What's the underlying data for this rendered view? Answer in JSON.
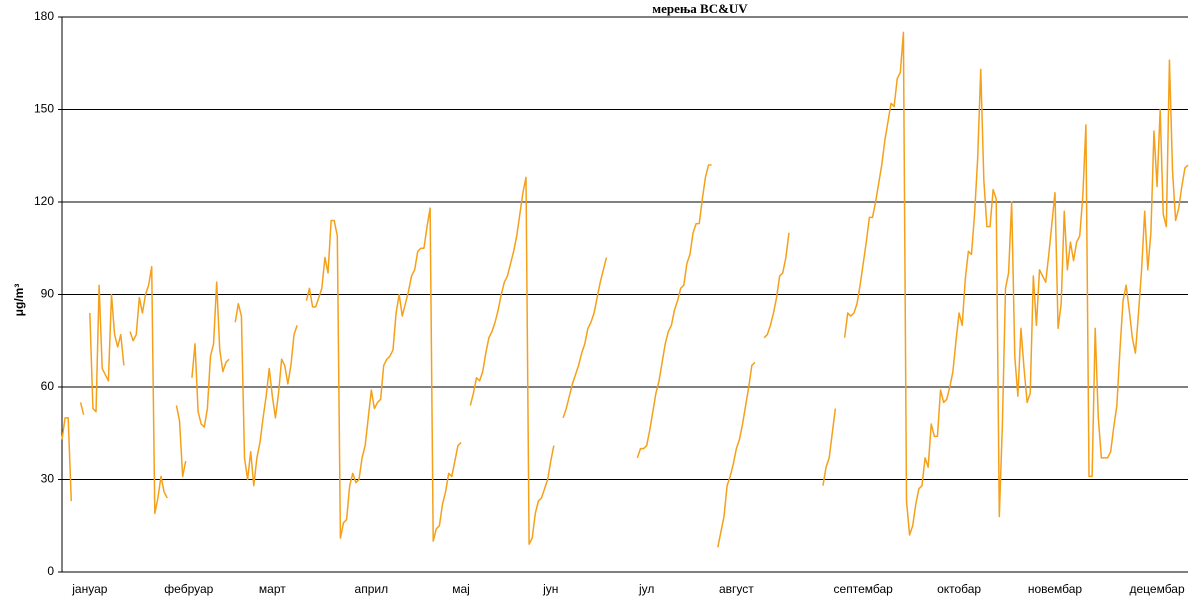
{
  "chart_data": {
    "type": "line",
    "title": "мерења BC&UV",
    "y_label": "μg/m³",
    "categories": [
      null,
      null,
      null,
      null,
      null,
      null,
      null,
      null,
      null,
      "јануар",
      null,
      null,
      null,
      null,
      null,
      null,
      null,
      null,
      null,
      null,
      null,
      null,
      null,
      null,
      null,
      null,
      null,
      null,
      null,
      null,
      null,
      null,
      null,
      null,
      null,
      null,
      null,
      null,
      null,
      null,
      null,
      "фебруар",
      null,
      null,
      null,
      null,
      null,
      null,
      null,
      null,
      null,
      null,
      null,
      null,
      null,
      null,
      null,
      null,
      null,
      null,
      null,
      null,
      null,
      null,
      null,
      null,
      null,
      null,
      "март",
      null,
      null,
      null,
      null,
      null,
      null,
      null,
      null,
      null,
      null,
      null,
      null,
      null,
      null,
      null,
      null,
      null,
      null,
      null,
      null,
      null,
      null,
      null,
      null,
      null,
      null,
      null,
      null,
      null,
      null,
      null,
      "април",
      null,
      null,
      null,
      null,
      null,
      null,
      null,
      null,
      null,
      null,
      null,
      null,
      null,
      null,
      null,
      null,
      null,
      null,
      null,
      null,
      null,
      null,
      null,
      null,
      null,
      null,
      null,
      null,
      "мај",
      null,
      null,
      null,
      null,
      null,
      null,
      null,
      null,
      null,
      null,
      null,
      null,
      null,
      null,
      null,
      null,
      null,
      null,
      null,
      null,
      null,
      null,
      null,
      null,
      null,
      null,
      null,
      null,
      "јун",
      null,
      null,
      null,
      null,
      null,
      null,
      null,
      null,
      null,
      null,
      null,
      null,
      null,
      null,
      null,
      null,
      null,
      null,
      null,
      null,
      null,
      null,
      null,
      null,
      null,
      null,
      null,
      null,
      null,
      null,
      "јул",
      null,
      null,
      null,
      null,
      null,
      null,
      null,
      null,
      null,
      null,
      null,
      null,
      null,
      null,
      null,
      null,
      null,
      null,
      null,
      null,
      null,
      null,
      null,
      null,
      null,
      null,
      null,
      null,
      "август",
      null,
      null,
      null,
      null,
      null,
      null,
      null,
      null,
      null,
      null,
      null,
      null,
      null,
      null,
      null,
      null,
      null,
      null,
      null,
      null,
      null,
      null,
      null,
      null,
      null,
      null,
      null,
      null,
      null,
      null,
      null,
      null,
      null,
      null,
      null,
      null,
      null,
      null,
      null,
      null,
      "септембар",
      null,
      null,
      null,
      null,
      null,
      null,
      null,
      null,
      null,
      null,
      null,
      null,
      null,
      null,
      null,
      null,
      null,
      null,
      null,
      null,
      null,
      null,
      null,
      null,
      null,
      null,
      null,
      null,
      null,
      null,
      "октобар",
      null,
      null,
      null,
      null,
      null,
      null,
      null,
      null,
      null,
      null,
      null,
      null,
      null,
      null,
      null,
      null,
      null,
      null,
      null,
      null,
      null,
      null,
      null,
      null,
      null,
      null,
      null,
      null,
      null,
      null,
      "новембар",
      null,
      null,
      null,
      null,
      null,
      null,
      null,
      null,
      null,
      null,
      null,
      null,
      null,
      null,
      null,
      null,
      null,
      null,
      null,
      null,
      null,
      null,
      null,
      null,
      null,
      null,
      null,
      null,
      null,
      null,
      null,
      null,
      "децембар",
      null,
      null,
      null,
      null,
      null,
      null,
      null,
      null,
      null,
      null
    ],
    "series": [
      {
        "name": "BC&UV",
        "color": "#f5a01a",
        "values": [
          43,
          50,
          50,
          23,
          null,
          null,
          55,
          51,
          null,
          84,
          53,
          52,
          93,
          66,
          64,
          62,
          90,
          77,
          73,
          77,
          67,
          null,
          78,
          75,
          77,
          89,
          84,
          90,
          93,
          99,
          19,
          24,
          31,
          26,
          24,
          null,
          null,
          54,
          49,
          31,
          36,
          null,
          63,
          74,
          52,
          48,
          47,
          53,
          70,
          74,
          94,
          72,
          65,
          68,
          69,
          null,
          81,
          87,
          83,
          37,
          30,
          39,
          28,
          37,
          42,
          50,
          57,
          66,
          57,
          50,
          58,
          69,
          67,
          61,
          67,
          77,
          80,
          null,
          null,
          88,
          92,
          86,
          86,
          89,
          92,
          102,
          97,
          114,
          114,
          109,
          11,
          16,
          17,
          28,
          32,
          29,
          30,
          37,
          41,
          50,
          59,
          53,
          55,
          56,
          67,
          69,
          70,
          72,
          84,
          90,
          83,
          87,
          91,
          96,
          98,
          104,
          105,
          105,
          112,
          118,
          10,
          14,
          15,
          22,
          26,
          32,
          31,
          36,
          41,
          42,
          null,
          null,
          54,
          58,
          63,
          62,
          65,
          71,
          76,
          78,
          81,
          85,
          90,
          94,
          96,
          100,
          104,
          109,
          116,
          123,
          128,
          9,
          11,
          19,
          23,
          24,
          27,
          30,
          36,
          41,
          null,
          null,
          50,
          53,
          57,
          61,
          64,
          67,
          71,
          74,
          79,
          81,
          84,
          89,
          94,
          98,
          102,
          null,
          null,
          null,
          null,
          null,
          null,
          null,
          null,
          null,
          37,
          40,
          40,
          41,
          46,
          52,
          58,
          62,
          68,
          74,
          78,
          80,
          85,
          88,
          92,
          93,
          100,
          103,
          110,
          113,
          113,
          121,
          128,
          132,
          132,
          null,
          8,
          13,
          18,
          28,
          31,
          35,
          40,
          43,
          48,
          54,
          60,
          67,
          68,
          null,
          null,
          76,
          77,
          80,
          84,
          89,
          96,
          97,
          102,
          110,
          null,
          null,
          null,
          null,
          null,
          null,
          null,
          null,
          null,
          null,
          28,
          34,
          37,
          45,
          53,
          null,
          null,
          76,
          84,
          83,
          84,
          87,
          93,
          100,
          107,
          115,
          115,
          120,
          126,
          132,
          140,
          146,
          152,
          151,
          160,
          162,
          175,
          23,
          12,
          15,
          22,
          27,
          28,
          37,
          34,
          48,
          44,
          44,
          59,
          55,
          56,
          60,
          65,
          75,
          84,
          80,
          95,
          104,
          103,
          116,
          134,
          163,
          127,
          112,
          112,
          124,
          121,
          18,
          48,
          92,
          97,
          120,
          70,
          57,
          79,
          66,
          55,
          58,
          96,
          80,
          98,
          96,
          94,
          103,
          113,
          123,
          79,
          87,
          117,
          98,
          107,
          101,
          107,
          109,
          122,
          145,
          31,
          31,
          79,
          50,
          37,
          37,
          37,
          39,
          47,
          54,
          72,
          88,
          93,
          85,
          76,
          71,
          84,
          98,
          117,
          98,
          110,
          143,
          125,
          150,
          116,
          112,
          166,
          130,
          114,
          118,
          125,
          131,
          132
        ]
      }
    ],
    "ylim": [
      0,
      180
    ],
    "yticks": [
      0,
      30,
      60,
      90,
      120,
      150,
      180
    ],
    "grid": true
  }
}
